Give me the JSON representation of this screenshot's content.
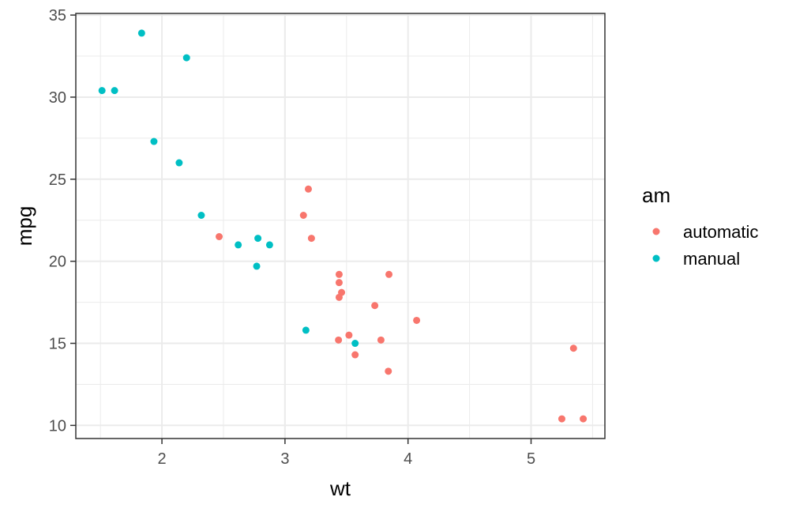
{
  "chart_data": {
    "type": "scatter",
    "xlabel": "wt",
    "ylabel": "mpg",
    "xlim": [
      1.3,
      5.6
    ],
    "ylim": [
      9.2,
      35.1
    ],
    "x_ticks": [
      2,
      3,
      4,
      5
    ],
    "y_ticks": [
      10,
      15,
      20,
      25,
      30,
      35
    ],
    "x_minor": [
      1.5,
      2.5,
      3.5,
      4.5,
      5.5
    ],
    "y_minor": [
      12.5,
      17.5,
      22.5,
      27.5,
      32.5
    ],
    "grid": true,
    "legend": {
      "title": "am",
      "placement": "right"
    },
    "series": [
      {
        "name": "automatic",
        "color": "#f8766d",
        "points": [
          [
            2.465,
            21.5
          ],
          [
            3.15,
            22.8
          ],
          [
            3.19,
            24.4
          ],
          [
            3.215,
            21.4
          ],
          [
            3.44,
            19.2
          ],
          [
            3.44,
            18.7
          ],
          [
            3.46,
            18.1
          ],
          [
            3.44,
            17.8
          ],
          [
            3.435,
            15.2
          ],
          [
            3.52,
            15.5
          ],
          [
            3.57,
            14.3
          ],
          [
            3.73,
            17.3
          ],
          [
            3.78,
            15.2
          ],
          [
            3.84,
            13.3
          ],
          [
            3.845,
            19.2
          ],
          [
            4.07,
            16.4
          ],
          [
            5.25,
            10.4
          ],
          [
            5.345,
            14.7
          ],
          [
            5.424,
            10.4
          ]
        ]
      },
      {
        "name": "manual",
        "color": "#00bfc4",
        "points": [
          [
            1.513,
            30.4
          ],
          [
            1.615,
            30.4
          ],
          [
            1.835,
            33.9
          ],
          [
            1.935,
            27.3
          ],
          [
            2.14,
            26.0
          ],
          [
            2.2,
            32.4
          ],
          [
            2.32,
            22.8
          ],
          [
            2.62,
            21.0
          ],
          [
            2.77,
            19.7
          ],
          [
            2.78,
            21.4
          ],
          [
            2.875,
            21.0
          ],
          [
            3.17,
            15.8
          ],
          [
            3.57,
            15.0
          ]
        ]
      }
    ]
  }
}
